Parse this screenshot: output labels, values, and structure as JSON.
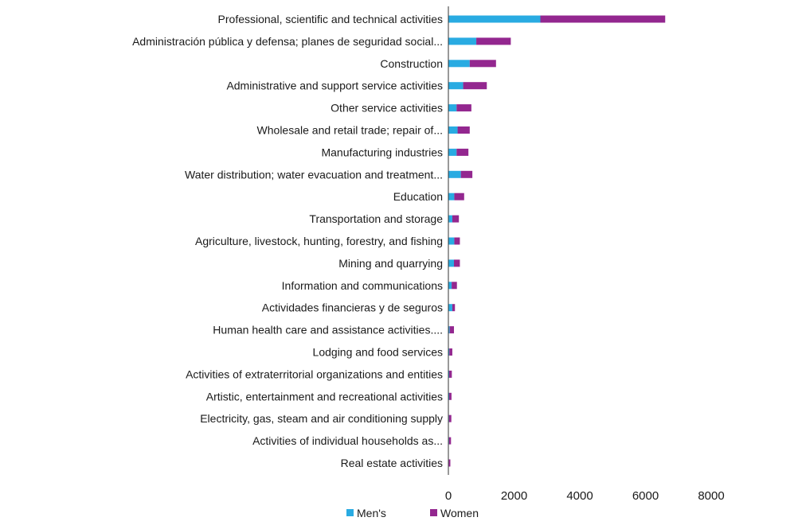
{
  "chart_data": {
    "type": "bar",
    "orientation": "horizontal",
    "stacked": true,
    "title": "",
    "xlabel": "",
    "ylabel": "",
    "xlim": [
      0,
      8000
    ],
    "x_ticks": [
      0,
      2000,
      4000,
      6000,
      8000
    ],
    "grid": false,
    "legend_position": "bottom",
    "categories": [
      "Professional, scientific and technical activities",
      "Administración pública y defensa; planes de seguridad social...",
      "Construction",
      "Administrative and support service activities",
      "Other service activities",
      "Wholesale and retail trade; repair of...",
      "Manufacturing industries",
      "Water distribution; water evacuation and treatment...",
      "Education",
      "Transportation and storage",
      "Agriculture, livestock, hunting, forestry, and fishing",
      "Mining and quarrying",
      "Information and communications",
      "Actividades financieras y de seguros",
      "Human health care and assistance activities....",
      "Lodging and food services",
      "Activities of extraterritorial organizations and entities",
      "Artistic, entertainment and recreational activities",
      "Electricity, gas, steam and air conditioning supply",
      "Activities of individual households as...",
      "Real estate activities"
    ],
    "series": [
      {
        "name": "Men's",
        "color": "#29abe2",
        "values": [
          2800,
          850,
          650,
          450,
          250,
          280,
          250,
          380,
          180,
          120,
          180,
          170,
          100,
          120,
          40,
          30,
          25,
          25,
          20,
          20,
          15
        ]
      },
      {
        "name": "Women",
        "color": "#93278f",
        "values": [
          3800,
          1050,
          800,
          720,
          450,
          370,
          360,
          350,
          300,
          200,
          170,
          180,
          160,
          80,
          130,
          90,
          80,
          70,
          70,
          60,
          45
        ]
      }
    ]
  }
}
